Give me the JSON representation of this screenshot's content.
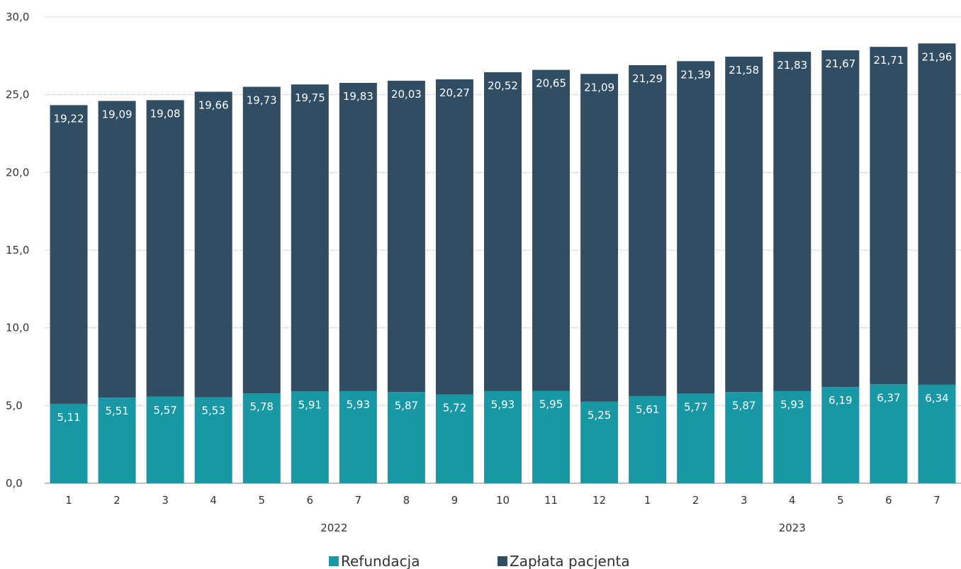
{
  "chart_data": {
    "type": "bar",
    "stacked": true,
    "categories": [
      "1",
      "2",
      "3",
      "4",
      "5",
      "6",
      "7",
      "8",
      "9",
      "10",
      "11",
      "12",
      "1",
      "2",
      "3",
      "4",
      "5",
      "6",
      "7"
    ],
    "groups": [
      {
        "label": "2022",
        "count": 12
      },
      {
        "label": "2023",
        "count": 7
      }
    ],
    "series": [
      {
        "name": "Refundacja",
        "color": "#1897a5",
        "values": [
          5.11,
          5.51,
          5.57,
          5.53,
          5.78,
          5.91,
          5.93,
          5.87,
          5.72,
          5.93,
          5.95,
          5.25,
          5.61,
          5.77,
          5.87,
          5.93,
          6.19,
          6.37,
          6.34
        ],
        "labels": [
          "5,11",
          "5,51",
          "5,57",
          "5,53",
          "5,78",
          "5,91",
          "5,93",
          "5,87",
          "5,72",
          "5,93",
          "5,95",
          "5,25",
          "5,61",
          "5,77",
          "5,87",
          "5,93",
          "6,19",
          "6,37",
          "6,34"
        ]
      },
      {
        "name": "Zapłata pacjenta",
        "color": "#304d63",
        "values": [
          19.22,
          19.09,
          19.08,
          19.66,
          19.73,
          19.75,
          19.83,
          20.03,
          20.27,
          20.52,
          20.65,
          21.09,
          21.29,
          21.39,
          21.58,
          21.83,
          21.67,
          21.71,
          21.96
        ],
        "labels": [
          "19,22",
          "19,09",
          "19,08",
          "19,66",
          "19,73",
          "19,75",
          "19,83",
          "20,03",
          "20,27",
          "20,52",
          "20,65",
          "21,09",
          "21,29",
          "21,39",
          "21,58",
          "21,83",
          "21,67",
          "21,71",
          "21,96"
        ]
      }
    ],
    "ylim": [
      0,
      30
    ],
    "yticks": [
      0,
      5,
      10,
      15,
      20,
      25,
      30
    ],
    "ytick_labels": [
      "0,0",
      "5,0",
      "10,0",
      "15,0",
      "20,0",
      "25,0",
      "30,0"
    ],
    "grid": true,
    "legend": "bottom-center",
    "title": "",
    "xlabel": "",
    "ylabel": ""
  }
}
